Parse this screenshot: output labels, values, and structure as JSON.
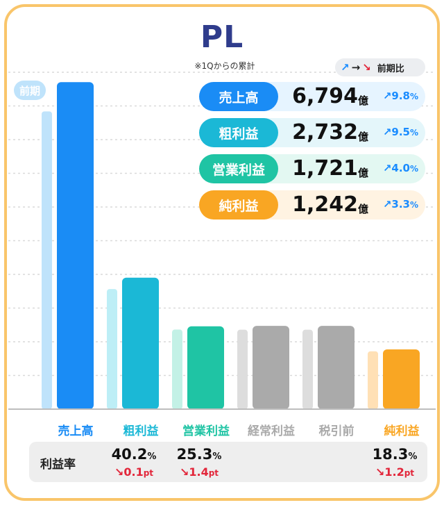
{
  "title": "PL",
  "subtitle": "※1Qからの累計",
  "legend": {
    "prev_label": "前期比",
    "arrows": [
      "↗",
      "→",
      "↘"
    ]
  },
  "prev_badge": "前期",
  "kpis": [
    {
      "label": "売上高",
      "value": "6,794",
      "unit": "億",
      "arrow": "↗",
      "change": "9.8",
      "change_unit": "%",
      "color": "#1a8cf5",
      "bg": "#e6f4ff"
    },
    {
      "label": "粗利益",
      "value": "2,732",
      "unit": "億",
      "arrow": "↗",
      "change": "9.5",
      "change_unit": "%",
      "color": "#1bb8d6",
      "bg": "#e4f6fa"
    },
    {
      "label": "営業利益",
      "value": "1,721",
      "unit": "億",
      "arrow": "↗",
      "change": "4.0",
      "change_unit": "%",
      "color": "#1fc4a4",
      "bg": "#e3f8f2"
    },
    {
      "label": "純利益",
      "value": "1,242",
      "unit": "億",
      "arrow": "↗",
      "change": "3.3",
      "change_unit": "%",
      "color": "#f9a623",
      "bg": "#fff3e2"
    }
  ],
  "chart_data": {
    "type": "bar",
    "title": "PL",
    "categories": [
      "売上高",
      "粗利益",
      "営業利益",
      "経常利益",
      "税引前",
      "純利益"
    ],
    "series": [
      {
        "name": "前期",
        "values": [
          6187,
          2495,
          1654,
          1650,
          1650,
          1202
        ]
      },
      {
        "values": [
          6794,
          2732,
          1721,
          1730,
          1730,
          1242
        ]
      }
    ],
    "ylim": [
      0,
      7000
    ],
    "grid": true,
    "colors_current": [
      "#1a8cf5",
      "#1bb8d6",
      "#1fc4a4",
      "#aaaaaa",
      "#aaaaaa",
      "#f9a623"
    ],
    "colors_prev": [
      "#bfe3fb",
      "#bdeef6",
      "#c3f1e6",
      "#dddddd",
      "#dddddd",
      "#ffe0b5"
    ],
    "label_colors": [
      "#1a8cf5",
      "#1bb8d6",
      "#1fc4a4",
      "#aaaaaa",
      "#aaaaaa",
      "#f9a623"
    ]
  },
  "margin": {
    "label": "利益率",
    "items": [
      {
        "category": "粗利益",
        "value": "40.2",
        "unit": "%",
        "arrow": "↘",
        "change": "0.1",
        "change_unit": "pt"
      },
      {
        "category": "営業利益",
        "value": "25.3",
        "unit": "%",
        "arrow": "↘",
        "change": "1.4",
        "change_unit": "pt"
      },
      {
        "category": "純利益",
        "value": "18.3",
        "unit": "%",
        "arrow": "↘",
        "change": "1.2",
        "change_unit": "pt"
      }
    ]
  }
}
